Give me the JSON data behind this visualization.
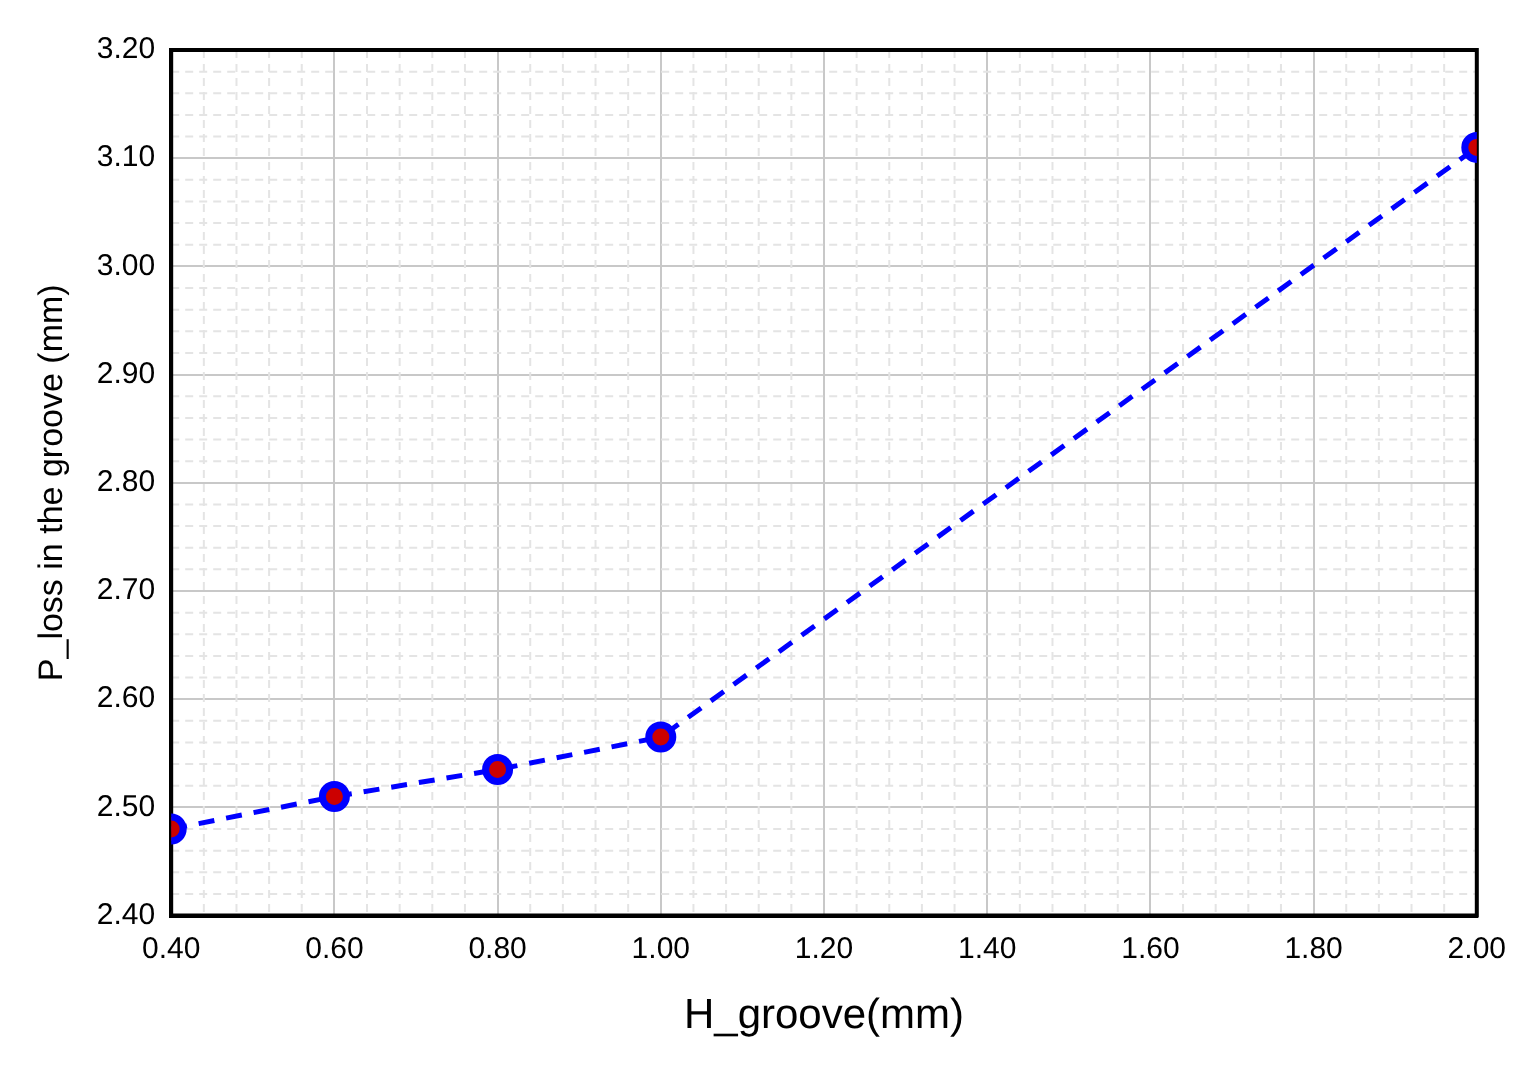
{
  "chart_data": {
    "type": "line",
    "xlabel": "H_groove(mm)",
    "ylabel": "P_loss in the groove (mm)",
    "x": [
      0.4,
      0.6,
      0.8,
      1.0,
      2.0
    ],
    "series": [
      {
        "color": "#0000ff",
        "values": [
          2.48,
          2.51,
          2.535,
          2.565,
          3.11
        ]
      }
    ],
    "xlim": [
      0.4,
      2.0
    ],
    "xticks": [
      {
        "value": 0.4,
        "label": "0.40"
      },
      {
        "value": 0.6,
        "label": "0.60"
      },
      {
        "value": 0.8,
        "label": "0.80"
      },
      {
        "value": 1.0,
        "label": "1.00"
      },
      {
        "value": 1.2,
        "label": "1.20"
      },
      {
        "value": 1.4,
        "label": "1.40"
      },
      {
        "value": 1.6,
        "label": "1.60"
      },
      {
        "value": 1.8,
        "label": "1.80"
      },
      {
        "value": 2.0,
        "label": "2.00"
      }
    ],
    "ylim": [
      2.4,
      3.2
    ],
    "yticks": [
      {
        "value": 2.4,
        "label": "2.40"
      },
      {
        "value": 2.5,
        "label": "2.50"
      },
      {
        "value": 2.6,
        "label": "2.60"
      },
      {
        "value": 2.7,
        "label": "2.70"
      },
      {
        "value": 2.8,
        "label": "2.80"
      },
      {
        "value": 2.9,
        "label": "2.90"
      },
      {
        "value": 3.0,
        "label": "3.00"
      },
      {
        "value": 3.1,
        "label": "3.10"
      },
      {
        "value": 3.2,
        "label": "3.20"
      }
    ],
    "grid": true,
    "legend": false,
    "marker": "circle",
    "line_style": "dashed"
  }
}
